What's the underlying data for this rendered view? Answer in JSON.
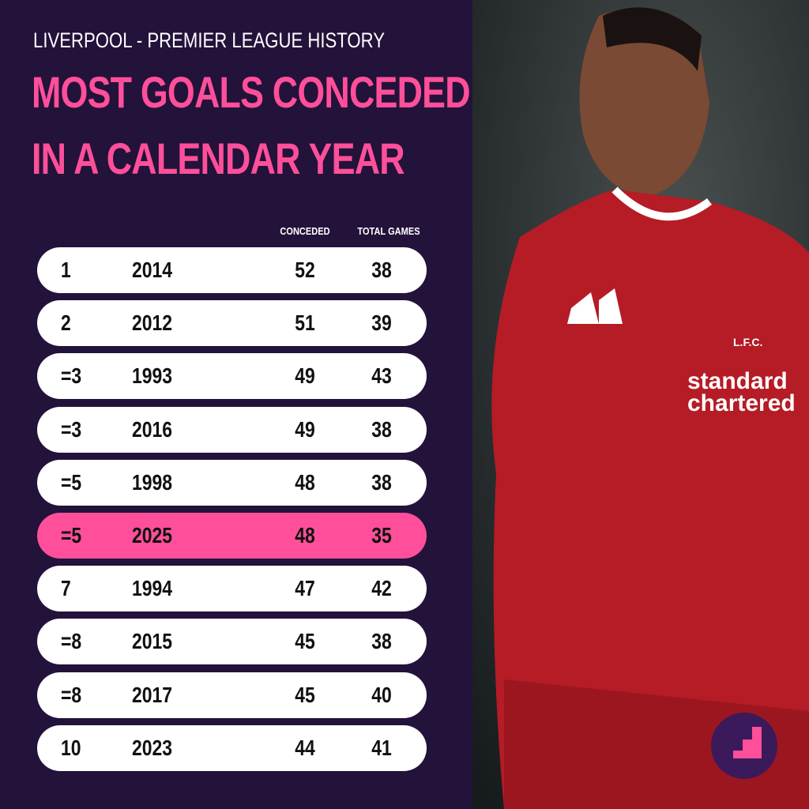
{
  "header": {
    "subtitle": "LIVERPOOL - PREMIER LEAGUE HISTORY",
    "title_lines": [
      "MOST GOALS CONCEDED",
      "IN A CALENDAR YEAR"
    ]
  },
  "table": {
    "columns": [
      "CONCEDED",
      "TOTAL GAMES"
    ],
    "rows": [
      [
        "1",
        "2014",
        "52",
        "38"
      ],
      [
        "2",
        "2012",
        "51",
        "39"
      ],
      [
        "=3",
        "1993",
        "49",
        "43"
      ],
      [
        "=3",
        "2016",
        "49",
        "38"
      ],
      [
        "=5",
        "1998",
        "48",
        "38"
      ],
      [
        "=5",
        "2025",
        "48",
        "35"
      ],
      [
        "7",
        "1994",
        "47",
        "42"
      ],
      [
        "=8",
        "2015",
        "45",
        "38"
      ],
      [
        "=8",
        "2017",
        "45",
        "40"
      ],
      [
        "10",
        "2023",
        "44",
        "41"
      ]
    ]
  },
  "photo": {
    "sponsor_lines": [
      "standard",
      "chartered"
    ],
    "crest": "L.F.C."
  }
}
